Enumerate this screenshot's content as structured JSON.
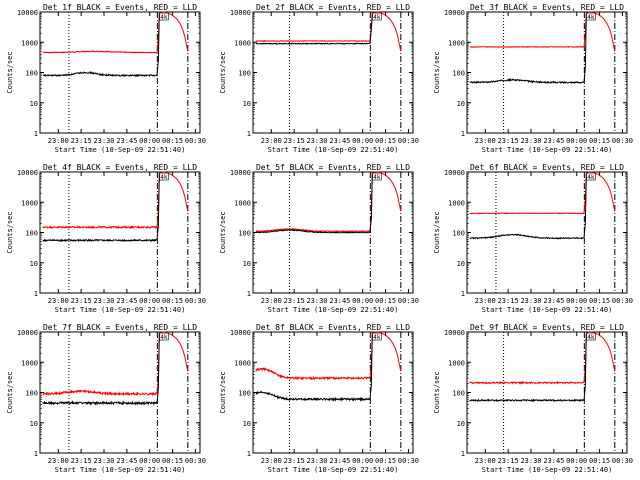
{
  "chart_data": [
    {
      "type": "line",
      "title": "Det 1f BLACK = Events, RED = LLD",
      "xlabel": "Start Time (10-Sep-09 22:51:40)",
      "ylabel": "Counts/sec",
      "yscale": "log",
      "ylim": [
        1,
        10000
      ],
      "x_ticks": [
        "23:00",
        "23:15",
        "23:30",
        "23:45",
        "00:00",
        "00:15",
        "00:30"
      ],
      "y_ticks": [
        "1",
        "10",
        "100",
        "1000",
        "10000"
      ],
      "series": [
        {
          "color": "#ff0000",
          "base": 460,
          "noise": 0.03,
          "bumps": [
            [
              23.4,
              40,
              0.25
            ]
          ],
          "jump": [
            1.05,
            0.13
          ],
          "post": "red-arc"
        },
        {
          "color": "#000000",
          "base": 80,
          "noise": 0.05,
          "bumps": [
            [
              23.3,
              20,
              0.15
            ]
          ],
          "jump": [
            1.05,
            0.1
          ],
          "post": "none"
        }
      ],
      "vlines_dotted": [
        "23:07"
      ],
      "vlines_dashed": [
        "00:05",
        "00:25"
      ],
      "marker_label": "4k"
    },
    {
      "type": "line",
      "title": "Det 2f BLACK = Events, RED = LLD",
      "xlabel": "Start Time (10-Sep-09 22:51:40)",
      "ylabel": "Counts/sec",
      "yscale": "log",
      "ylim": [
        1,
        10000
      ],
      "x_ticks": [
        "23:00",
        "23:15",
        "23:30",
        "23:45",
        "00:00",
        "00:15",
        "00:30"
      ],
      "y_ticks": [
        "1",
        "10",
        "100",
        "1000",
        "10000"
      ],
      "series": [
        {
          "color": "#ff0000",
          "base": 1100,
          "noise": 0.02,
          "bumps": [],
          "jump": [
            1.05,
            0.16
          ],
          "post": "red-arc"
        },
        {
          "color": "#000000",
          "base": 900,
          "noise": 0.03,
          "bumps": [],
          "jump": [
            1.05,
            0.16
          ],
          "post": "none"
        }
      ],
      "vlines_dotted": [
        "23:12"
      ],
      "vlines_dashed": [
        "00:05",
        "00:25"
      ],
      "marker_label": "4k"
    },
    {
      "type": "line",
      "title": "Det 3f BLACK = Events, RED = LLD",
      "xlabel": "Start Time (10-Sep-09 22:51:40)",
      "ylabel": "Counts/sec",
      "yscale": "log",
      "ylim": [
        1,
        10000
      ],
      "x_ticks": [
        "23:00",
        "23:15",
        "23:30",
        "23:45",
        "00:00",
        "00:15",
        "00:30"
      ],
      "y_ticks": [
        "1",
        "10",
        "100",
        "1000",
        "10000"
      ],
      "series": [
        {
          "color": "#ff0000",
          "base": 700,
          "noise": 0.02,
          "bumps": [],
          "jump": [
            1.05,
            0.2
          ],
          "post": "red-arc"
        },
        {
          "color": "#000000",
          "base": 47,
          "noise": 0.05,
          "bumps": [
            [
              23.3,
              10,
              0.2
            ]
          ],
          "jump": [
            1.05,
            0.25
          ],
          "post": "none"
        }
      ],
      "vlines_dotted": [
        "23:12"
      ],
      "vlines_dashed": [
        "00:05",
        "00:25"
      ],
      "marker_label": "4k"
    },
    {
      "type": "line",
      "title": "Det 4f BLACK = Events, RED = LLD",
      "xlabel": "Start Time (10-Sep-09 22:51:40)",
      "ylabel": "Counts/sec",
      "yscale": "log",
      "ylim": [
        1,
        10000
      ],
      "x_ticks": [
        "23:00",
        "23:15",
        "23:30",
        "23:45",
        "00:00",
        "00:15",
        "00:30"
      ],
      "y_ticks": [
        "1",
        "10",
        "100",
        "1000",
        "10000"
      ],
      "series": [
        {
          "color": "#ff0000",
          "base": 150,
          "noise": 0.06,
          "bumps": [],
          "jump": [
            1.05,
            0.13
          ],
          "post": "red-arc"
        },
        {
          "color": "#000000",
          "base": 55,
          "noise": 0.06,
          "bumps": [],
          "jump": [
            1.05,
            0.1
          ],
          "post": "none"
        }
      ],
      "vlines_dotted": [
        "23:07"
      ],
      "vlines_dashed": [
        "00:05",
        "00:25"
      ],
      "marker_label": "4k"
    },
    {
      "type": "line",
      "title": "Det 5f BLACK = Events, RED = LLD",
      "xlabel": "Start Time (10-Sep-09 22:51:40)",
      "ylabel": "Counts/sec",
      "yscale": "log",
      "ylim": [
        1,
        10000
      ],
      "x_ticks": [
        "23:00",
        "23:15",
        "23:30",
        "23:45",
        "00:00",
        "00:15",
        "00:30"
      ],
      "y_ticks": [
        "1",
        "10",
        "100",
        "1000",
        "10000"
      ],
      "series": [
        {
          "color": "#ff0000",
          "base": 110,
          "noise": 0.03,
          "bumps": [
            [
              23.2,
              20,
              0.2
            ]
          ],
          "jump": [
            1.05,
            0.13
          ],
          "post": "red-arc"
        },
        {
          "color": "#000000",
          "base": 100,
          "noise": 0.03,
          "bumps": [
            [
              23.2,
              20,
              0.2
            ]
          ],
          "jump": [
            1.05,
            0.1
          ],
          "post": "none"
        }
      ],
      "vlines_dotted": [
        "23:12"
      ],
      "vlines_dashed": [
        "00:05",
        "00:25"
      ],
      "marker_label": "4k"
    },
    {
      "type": "line",
      "title": "Det 6f BLACK = Events, RED = LLD",
      "xlabel": "Start Time (10-Sep-09 22:51:40)",
      "ylabel": "Counts/sec",
      "yscale": "log",
      "ylim": [
        1,
        10000
      ],
      "x_ticks": [
        "23:00",
        "23:15",
        "23:30",
        "23:45",
        "00:00",
        "00:15",
        "00:30"
      ],
      "y_ticks": [
        "1",
        "10",
        "100",
        "1000",
        "10000"
      ],
      "series": [
        {
          "color": "#ff0000",
          "base": 430,
          "noise": 0.02,
          "bumps": [],
          "jump": [
            1.05,
            0.13
          ],
          "post": "red-arc"
        },
        {
          "color": "#000000",
          "base": 65,
          "noise": 0.04,
          "bumps": [
            [
              23.3,
              20,
              0.2
            ]
          ],
          "jump": [
            1.05,
            0.12
          ],
          "post": "none"
        }
      ],
      "vlines_dotted": [
        "23:07"
      ],
      "vlines_dashed": [
        "00:05",
        "00:25"
      ],
      "marker_label": "4k"
    },
    {
      "type": "line",
      "title": "Det 7f BLACK = Events, RED = LLD",
      "xlabel": "Start Time (10-Sep-09 22:51:40)",
      "ylabel": "Counts/sec",
      "yscale": "log",
      "ylim": [
        1,
        10000
      ],
      "x_ticks": [
        "23:00",
        "23:15",
        "23:30",
        "23:45",
        "00:00",
        "00:15",
        "00:30"
      ],
      "y_ticks": [
        "1",
        "10",
        "100",
        "1000",
        "10000"
      ],
      "series": [
        {
          "color": "#ff0000",
          "base": 90,
          "noise": 0.08,
          "bumps": [
            [
              23.25,
              20,
              0.2
            ]
          ],
          "jump": [
            1.05,
            0.13
          ],
          "post": "red-arc"
        },
        {
          "color": "#000000",
          "base": 45,
          "noise": 0.08,
          "bumps": [],
          "jump": [
            1.05,
            0.1
          ],
          "post": "none"
        }
      ],
      "vlines_dotted": [
        "23:07"
      ],
      "vlines_dashed": [
        "00:05",
        "00:25"
      ],
      "marker_label": "4k"
    },
    {
      "type": "line",
      "title": "Det 8f BLACK = Events, RED = LLD",
      "xlabel": "Start Time (10-Sep-09 22:51:40)",
      "ylabel": "Counts/sec",
      "yscale": "log",
      "ylim": [
        1,
        10000
      ],
      "x_ticks": [
        "23:00",
        "23:15",
        "23:30",
        "23:45",
        "00:00",
        "00:15",
        "00:30"
      ],
      "y_ticks": [
        "1",
        "10",
        "100",
        "1000",
        "10000"
      ],
      "series": [
        {
          "color": "#ff0000",
          "base": 300,
          "noise": 0.07,
          "bumps": [
            [
              22.9,
              300,
              0.15
            ]
          ],
          "jump": [
            1.05,
            0.13
          ],
          "post": "red-arc"
        },
        {
          "color": "#000000",
          "base": 60,
          "noise": 0.07,
          "bumps": [
            [
              22.9,
              40,
              0.15
            ]
          ],
          "jump": [
            1.05,
            0.1
          ],
          "post": "none"
        }
      ],
      "vlines_dotted": [
        "23:12"
      ],
      "vlines_dashed": [
        "00:05",
        "00:25"
      ],
      "marker_label": "4k"
    },
    {
      "type": "line",
      "title": "Det 9f BLACK = Events, RED = LLD",
      "xlabel": "Start Time (10-Sep-09 22:51:40)",
      "ylabel": "Counts/sec",
      "yscale": "log",
      "ylim": [
        1,
        10000
      ],
      "x_ticks": [
        "23:00",
        "23:15",
        "23:30",
        "23:45",
        "00:00",
        "00:15",
        "00:30"
      ],
      "y_ticks": [
        "1",
        "10",
        "100",
        "1000",
        "10000"
      ],
      "series": [
        {
          "color": "#ff0000",
          "base": 210,
          "noise": 0.05,
          "bumps": [],
          "jump": [
            1.05,
            0.13
          ],
          "post": "red-arc"
        },
        {
          "color": "#000000",
          "base": 55,
          "noise": 0.05,
          "bumps": [],
          "jump": [
            1.05,
            0.1
          ],
          "post": "none"
        }
      ],
      "vlines_dotted": [
        "23:12"
      ],
      "vlines_dashed": [
        "00:05",
        "00:25"
      ],
      "marker_label": "4k"
    }
  ]
}
